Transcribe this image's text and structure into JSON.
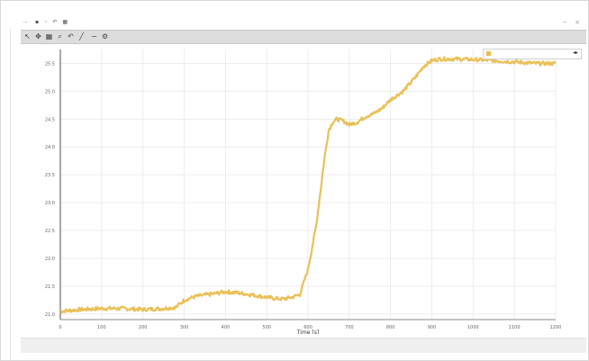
{
  "window": {
    "title": "...",
    "title_icon_names": [
      "save-icon",
      "settings-icon",
      "undo-icon",
      "grid-icon"
    ],
    "controls": [
      "minimize",
      "close"
    ]
  },
  "toolbar": {
    "tools": [
      {
        "name": "pointer-icon",
        "glyph": "↖"
      },
      {
        "name": "pan-icon",
        "glyph": "✥"
      },
      {
        "name": "select-icon",
        "glyph": "▦"
      },
      {
        "name": "zoom-icon",
        "glyph": "⌕"
      },
      {
        "name": "undo-icon",
        "glyph": "↶"
      },
      {
        "name": "line-icon",
        "glyph": "╱"
      },
      {
        "name": "minus-icon",
        "glyph": "−"
      },
      {
        "name": "settings-icon",
        "glyph": "⚙"
      }
    ]
  },
  "legend": {
    "label": "",
    "controls": "◂▸",
    "color": "#e8bd4e"
  },
  "chart_data": {
    "type": "line",
    "title": "",
    "xlabel": "Time [s]",
    "ylabel": "",
    "xlim": [
      0,
      1200
    ],
    "ylim": [
      20.9,
      25.75
    ],
    "xticks": [
      0,
      100,
      200,
      300,
      400,
      500,
      600,
      700,
      800,
      900,
      1000,
      1100,
      1200
    ],
    "yticks": [
      21.0,
      21.5,
      22.0,
      22.5,
      23.0,
      23.5,
      24.0,
      24.5,
      25.0,
      25.5
    ],
    "grid": true,
    "legend_position": "top-right",
    "series": [
      {
        "color": "#e8bd4e",
        "x": [
          0,
          50,
          100,
          150,
          200,
          250,
          280,
          300,
          330,
          360,
          400,
          430,
          460,
          500,
          520,
          540,
          560,
          580,
          600,
          610,
          620,
          630,
          640,
          650,
          660,
          670,
          680,
          690,
          700,
          720,
          740,
          760,
          780,
          800,
          830,
          860,
          880,
          900,
          920,
          950,
          1000,
          1050,
          1100,
          1150,
          1200
        ],
        "y": [
          21.05,
          21.08,
          21.1,
          21.1,
          21.08,
          21.1,
          21.12,
          21.25,
          21.32,
          21.35,
          21.4,
          21.38,
          21.35,
          21.3,
          21.28,
          21.27,
          21.3,
          21.35,
          21.8,
          22.2,
          22.6,
          23.2,
          23.8,
          24.3,
          24.45,
          24.5,
          24.48,
          24.45,
          24.4,
          24.45,
          24.55,
          24.6,
          24.7,
          24.85,
          25.0,
          25.25,
          25.45,
          25.55,
          25.58,
          25.58,
          25.57,
          25.55,
          25.53,
          25.5,
          25.5
        ]
      }
    ]
  }
}
